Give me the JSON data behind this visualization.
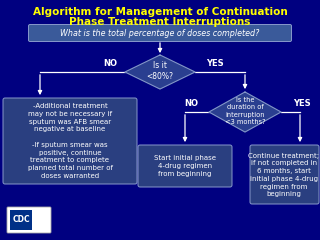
{
  "title_line1": "Algorithm for Management of Continuation",
  "title_line2": "Phase Treatment Interruptions",
  "title_color": "#FFFF00",
  "slide_bg": "#000080",
  "question_box_text": "What is the total percentage of doses completed?",
  "question_box_bg": "#3a5a9a",
  "diamond1_text": "Is it\n<80%?",
  "diamond2_text": "Is the\nduration of\ninterruption\n<3 months?",
  "box_left_text": "-Additional treatment\nmay not be necessary if\nsputum was AFB smear\nnegative at baseline\n\n-If sputum smear was\npositive, continue\ntreatment to complete\nplanned total number of\ndoses warranted",
  "box_bottom_text": "Start initial phase\n4-drug regimen\nfrom beginning",
  "box_right_text": "Continue treatment;\nif not completed in\n6 months, start\ninitial phase 4-drug\nregimen from\nbeginning",
  "box_bg": "#2a3f80",
  "diamond_bg": "#2a3f90",
  "arrow_color": "#ffffff",
  "text_color": "#ffffff",
  "font_size_title": 7.5,
  "font_size_qbox": 5.8,
  "font_size_box": 5.0,
  "font_size_diamond": 5.5,
  "font_size_label": 6.0,
  "edge_color": "#8899cc"
}
